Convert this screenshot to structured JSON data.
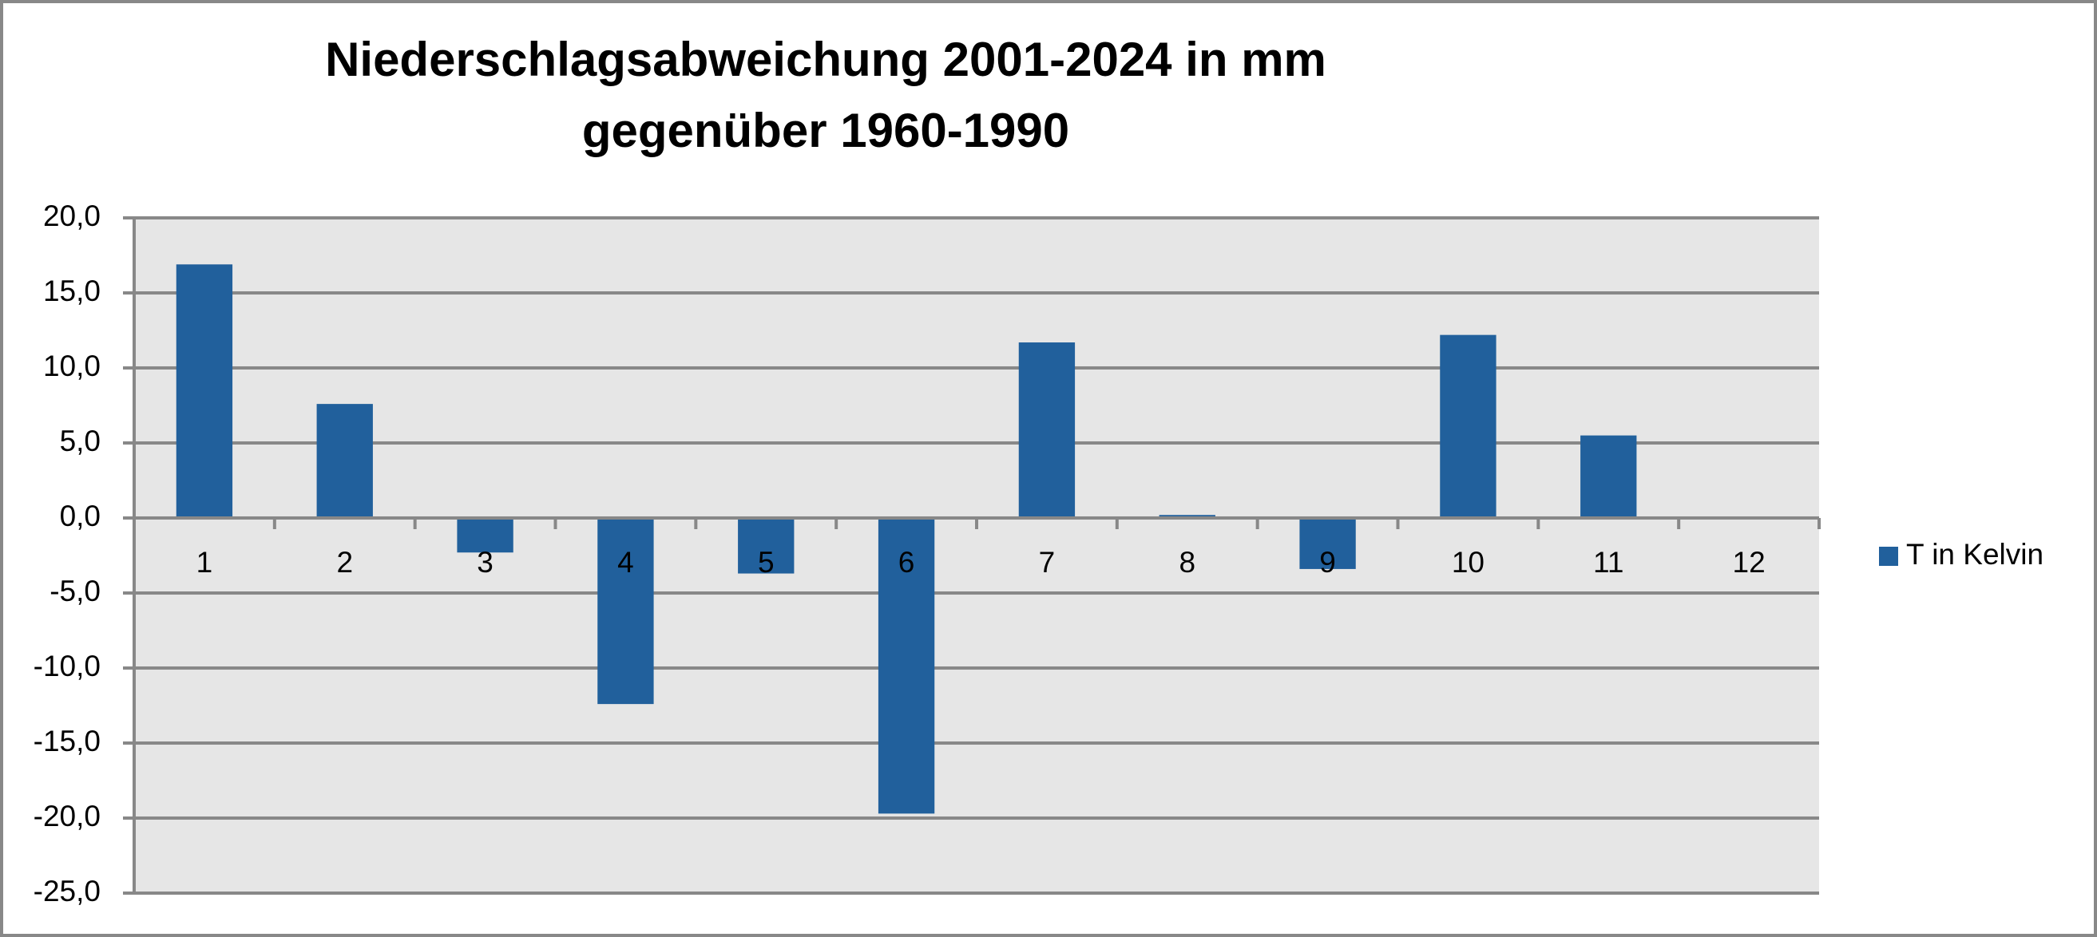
{
  "chart_data": {
    "type": "bar",
    "title": [
      "Niederschlagsabweichung 2001-2024 in mm",
      "gegenüber 1960-1990"
    ],
    "categories": [
      "1",
      "2",
      "3",
      "4",
      "5",
      "6",
      "7",
      "8",
      "9",
      "10",
      "11",
      "12"
    ],
    "series": [
      {
        "name": "T in Kelvin",
        "color": "#21609c",
        "values": [
          16.9,
          7.6,
          -2.3,
          -12.4,
          -3.7,
          -19.7,
          11.7,
          0.2,
          -3.4,
          12.2,
          5.5,
          null
        ]
      }
    ],
    "ylim": [
      -25,
      20
    ],
    "yticks": [
      {
        "value": -25,
        "label": "-25,0"
      },
      {
        "value": -20,
        "label": "-20,0"
      },
      {
        "value": -15,
        "label": "-15,0"
      },
      {
        "value": -10,
        "label": "-10,0"
      },
      {
        "value": -5,
        "label": "-5,0"
      },
      {
        "value": 0,
        "label": "0,0"
      },
      {
        "value": 5,
        "label": "5,0"
      },
      {
        "value": 10,
        "label": "10,0"
      },
      {
        "value": 15,
        "label": "15,0"
      },
      {
        "value": 20,
        "label": "20,0"
      }
    ],
    "grid": true,
    "legend": "right"
  }
}
